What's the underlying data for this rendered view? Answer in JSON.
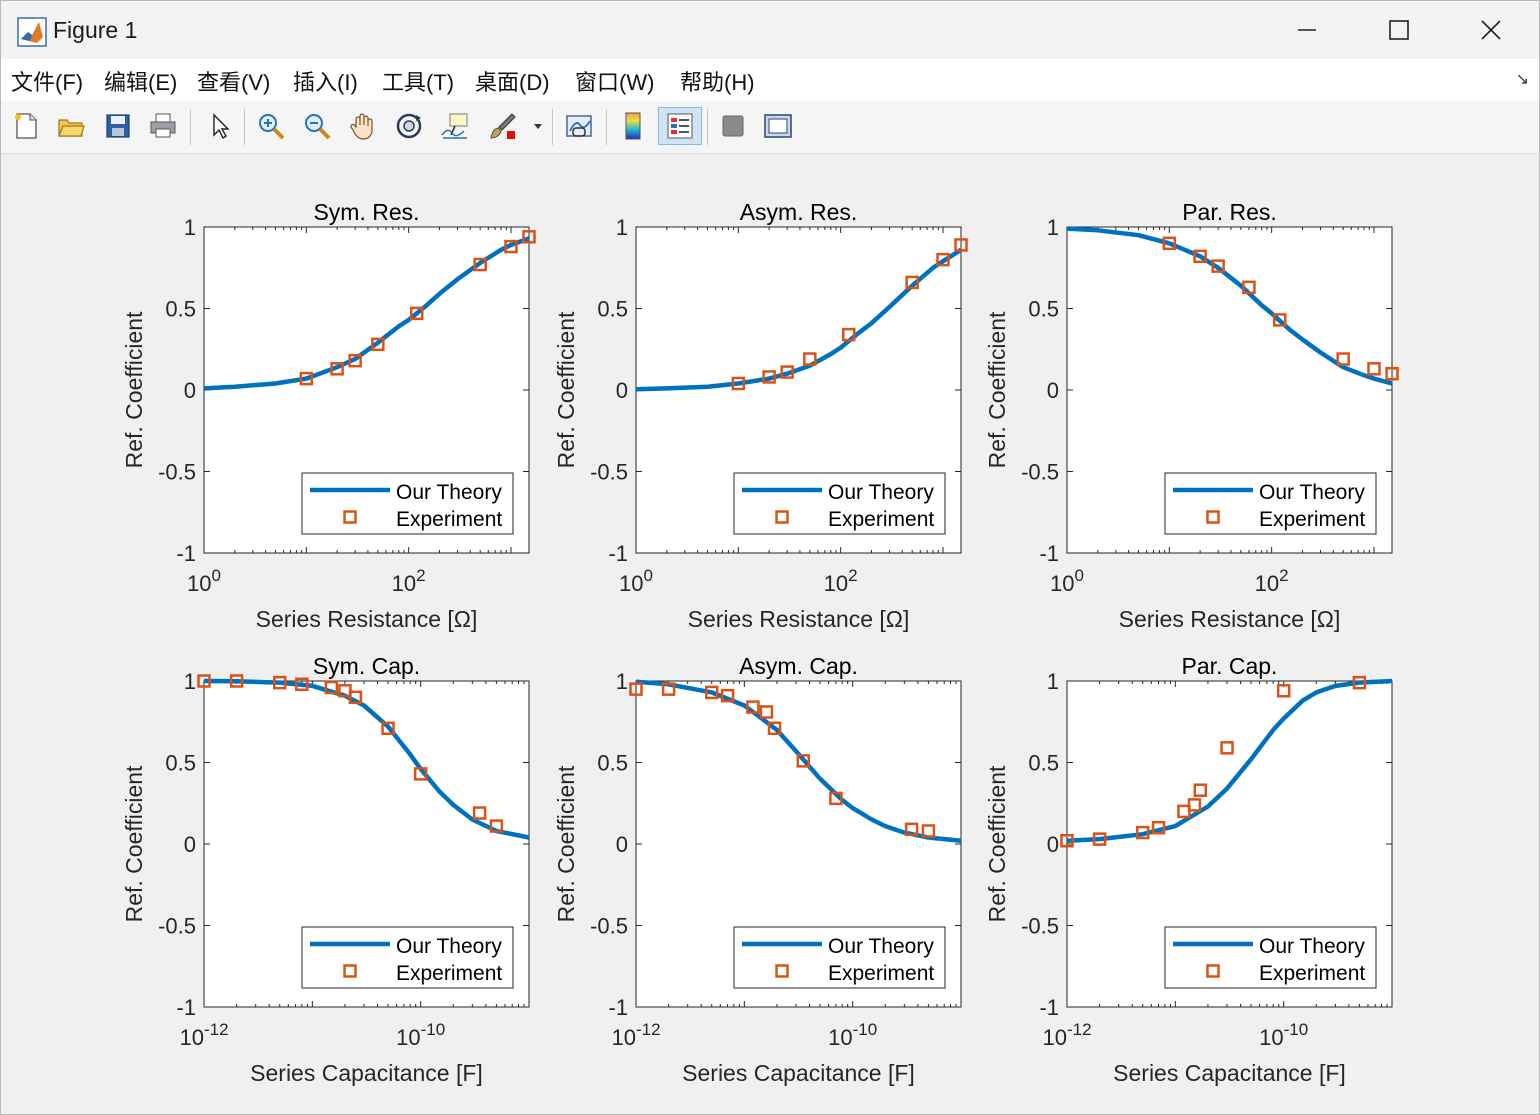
{
  "window": {
    "title": "Figure 1",
    "menu": [
      "文件(F)",
      "编辑(E)",
      "查看(V)",
      "插入(I)",
      "工具(T)",
      "桌面(D)",
      "窗口(W)",
      "帮助(H)"
    ],
    "menu_more": "↘"
  },
  "colors": {
    "theory": "#0072bd",
    "experiment": "#d95319"
  },
  "toolbar_icons": [
    "new-file-icon",
    "open-folder-icon",
    "save-icon",
    "print-icon",
    "select-arrow-icon",
    "zoom-in-icon",
    "zoom-out-icon",
    "pan-hand-icon",
    "rotate-3d-icon",
    "data-cursor-icon",
    "brush-icon",
    "link-plot-icon",
    "insert-colorbar-icon",
    "insert-legend-icon",
    "hide-plot-tools-icon",
    "show-plot-tools-icon"
  ],
  "chart_data": [
    {
      "type": "line",
      "title": "Sym. Res.",
      "xlabel": "Series Resistance [Ω]",
      "ylabel": "Ref. Coefficient",
      "xscale": "log",
      "xlim": [
        1,
        1500
      ],
      "ylim": [
        -1,
        1
      ],
      "xticks": [
        {
          "value": 1,
          "base": "10",
          "exp": "0"
        },
        {
          "value": 100,
          "base": "10",
          "exp": "2"
        }
      ],
      "yticks": [
        "-1",
        "-0.5",
        "0",
        "0.5",
        "1"
      ],
      "legend": {
        "position": "bottom-right",
        "entries": [
          "Our Theory",
          "Experiment"
        ]
      },
      "series": [
        {
          "name": "Our Theory",
          "style": "line",
          "x": [
            1,
            2,
            5,
            10,
            20,
            30,
            50,
            80,
            100,
            150,
            200,
            300,
            500,
            800,
            1000,
            1500
          ],
          "y": [
            0.01,
            0.02,
            0.04,
            0.07,
            0.14,
            0.19,
            0.29,
            0.39,
            0.43,
            0.52,
            0.59,
            0.68,
            0.78,
            0.86,
            0.89,
            0.93
          ]
        },
        {
          "name": "Experiment",
          "style": "marker",
          "x": [
            10,
            20,
            30,
            50,
            120,
            500,
            1000,
            2000
          ],
          "y": [
            0.07,
            0.13,
            0.18,
            0.28,
            0.47,
            0.77,
            0.88,
            0.94
          ]
        }
      ]
    },
    {
      "type": "line",
      "title": "Asym. Res.",
      "xlabel": "Series Resistance [Ω]",
      "ylabel": "Ref. Coefficient",
      "xscale": "log",
      "xlim": [
        1,
        1500
      ],
      "ylim": [
        -1,
        1
      ],
      "xticks": [
        {
          "value": 1,
          "base": "10",
          "exp": "0"
        },
        {
          "value": 100,
          "base": "10",
          "exp": "2"
        }
      ],
      "yticks": [
        "-1",
        "-0.5",
        "0",
        "0.5",
        "1"
      ],
      "legend": {
        "position": "bottom-right",
        "entries": [
          "Our Theory",
          "Experiment"
        ]
      },
      "series": [
        {
          "name": "Our Theory",
          "style": "line",
          "x": [
            1,
            2,
            5,
            10,
            20,
            30,
            50,
            80,
            100,
            150,
            200,
            300,
            500,
            800,
            1000,
            1500
          ],
          "y": [
            0.005,
            0.01,
            0.02,
            0.04,
            0.07,
            0.1,
            0.15,
            0.22,
            0.26,
            0.35,
            0.41,
            0.51,
            0.64,
            0.75,
            0.79,
            0.86
          ]
        },
        {
          "name": "Experiment",
          "style": "marker",
          "x": [
            10,
            20,
            30,
            50,
            120,
            500,
            1000,
            2000
          ],
          "y": [
            0.04,
            0.08,
            0.11,
            0.19,
            0.34,
            0.66,
            0.8,
            0.89
          ]
        }
      ]
    },
    {
      "type": "line",
      "title": "Par. Res.",
      "xlabel": "Series Resistance [Ω]",
      "ylabel": "Ref. Coefficient",
      "xscale": "log",
      "xlim": [
        1,
        1500
      ],
      "ylim": [
        -1,
        1
      ],
      "xticks": [
        {
          "value": 1,
          "base": "10",
          "exp": "0"
        },
        {
          "value": 100,
          "base": "10",
          "exp": "2"
        }
      ],
      "yticks": [
        "-1",
        "-0.5",
        "0",
        "0.5",
        "1"
      ],
      "legend": {
        "position": "bottom-right",
        "entries": [
          "Our Theory",
          "Experiment"
        ]
      },
      "series": [
        {
          "name": "Our Theory",
          "style": "line",
          "x": [
            1,
            2,
            5,
            10,
            20,
            30,
            50,
            80,
            100,
            150,
            200,
            300,
            500,
            800,
            1000,
            1500
          ],
          "y": [
            0.99,
            0.98,
            0.95,
            0.9,
            0.82,
            0.75,
            0.64,
            0.52,
            0.47,
            0.37,
            0.31,
            0.23,
            0.14,
            0.09,
            0.07,
            0.04
          ]
        },
        {
          "name": "Experiment",
          "style": "marker",
          "x": [
            10,
            20,
            30,
            60,
            120,
            500,
            1000,
            2000
          ],
          "y": [
            0.9,
            0.82,
            0.76,
            0.63,
            0.43,
            0.19,
            0.13,
            0.1
          ]
        }
      ]
    },
    {
      "type": "line",
      "title": "Sym. Cap.",
      "xlabel": "Series Capacitance [F]",
      "ylabel": "Ref. Coefficient",
      "xscale": "log",
      "xlim": [
        1e-12,
        1e-09
      ],
      "ylim": [
        -1,
        1
      ],
      "xticks": [
        {
          "value": 1e-12,
          "base": "10",
          "exp": "-12"
        },
        {
          "value": 1e-10,
          "base": "10",
          "exp": "-10"
        }
      ],
      "yticks": [
        "-1",
        "-0.5",
        "0",
        "0.5",
        "1"
      ],
      "legend": {
        "position": "bottom-right",
        "entries": [
          "Our Theory",
          "Experiment"
        ]
      },
      "series": [
        {
          "name": "Our Theory",
          "style": "line",
          "x": [
            1e-12,
            2e-12,
            5e-12,
            1e-11,
            2e-11,
            3e-11,
            5e-11,
            8e-11,
            1e-10,
            1.5e-10,
            2e-10,
            3e-10,
            5e-10,
            1e-09
          ],
          "y": [
            1.0,
            0.998,
            0.99,
            0.97,
            0.91,
            0.85,
            0.72,
            0.55,
            0.46,
            0.32,
            0.24,
            0.15,
            0.08,
            0.04
          ]
        },
        {
          "name": "Experiment",
          "style": "marker",
          "x": [
            1e-12,
            2e-12,
            5e-12,
            8e-12,
            1.5e-11,
            2e-11,
            2.5e-11,
            5e-11,
            1e-10,
            3.5e-10,
            5e-10
          ],
          "y": [
            1.0,
            1.0,
            0.99,
            0.98,
            0.96,
            0.94,
            0.9,
            0.71,
            0.43,
            0.19,
            0.11
          ]
        }
      ]
    },
    {
      "type": "line",
      "title": "Asym. Cap.",
      "xlabel": "Series Capacitance [F]",
      "ylabel": "Ref. Coefficient",
      "xscale": "log",
      "xlim": [
        1e-12,
        1e-09
      ],
      "ylim": [
        -1,
        1
      ],
      "xticks": [
        {
          "value": 1e-12,
          "base": "10",
          "exp": "-12"
        },
        {
          "value": 1e-10,
          "base": "10",
          "exp": "-10"
        }
      ],
      "yticks": [
        "-1",
        "-0.5",
        "0",
        "0.5",
        "1"
      ],
      "legend": {
        "position": "bottom-right",
        "entries": [
          "Our Theory",
          "Experiment"
        ]
      },
      "series": [
        {
          "name": "Our Theory",
          "style": "line",
          "x": [
            1e-12,
            2e-12,
            5e-12,
            1e-11,
            2e-11,
            3e-11,
            5e-11,
            8e-11,
            1e-10,
            1.5e-10,
            2e-10,
            3e-10,
            5e-10,
            1e-09
          ],
          "y": [
            0.995,
            0.98,
            0.93,
            0.85,
            0.7,
            0.57,
            0.4,
            0.27,
            0.22,
            0.15,
            0.11,
            0.07,
            0.04,
            0.02
          ]
        },
        {
          "name": "Experiment",
          "style": "marker",
          "x": [
            1e-12,
            2e-12,
            5e-12,
            7e-12,
            1.2e-11,
            1.6e-11,
            1.9e-11,
            3.5e-11,
            7e-11,
            3.5e-10,
            5e-10
          ],
          "y": [
            0.95,
            0.95,
            0.93,
            0.91,
            0.84,
            0.81,
            0.71,
            0.51,
            0.28,
            0.09,
            0.08
          ]
        }
      ]
    },
    {
      "type": "line",
      "title": "Par. Cap.",
      "xlabel": "Series Capacitance [F]",
      "ylabel": "Ref. Coefficient",
      "xscale": "log",
      "xlim": [
        1e-12,
        1e-09
      ],
      "ylim": [
        -1,
        1
      ],
      "xticks": [
        {
          "value": 1e-12,
          "base": "10",
          "exp": "-12"
        },
        {
          "value": 1e-10,
          "base": "10",
          "exp": "-10"
        }
      ],
      "yticks": [
        "-1",
        "-0.5",
        "0",
        "0.5",
        "1"
      ],
      "legend": {
        "position": "bottom-right",
        "entries": [
          "Our Theory",
          "Experiment"
        ]
      },
      "series": [
        {
          "name": "Our Theory",
          "style": "line",
          "x": [
            1e-12,
            2e-12,
            5e-12,
            1e-11,
            2e-11,
            3e-11,
            5e-11,
            8e-11,
            1e-10,
            1.5e-10,
            2e-10,
            3e-10,
            5e-10,
            1e-09
          ],
          "y": [
            0.02,
            0.03,
            0.06,
            0.11,
            0.23,
            0.34,
            0.52,
            0.7,
            0.77,
            0.88,
            0.93,
            0.97,
            0.99,
            1.0
          ]
        },
        {
          "name": "Experiment",
          "style": "marker",
          "x": [
            1e-12,
            2e-12,
            5e-12,
            7e-12,
            1.2e-11,
            1.5e-11,
            1.7e-11,
            3e-11,
            1e-10,
            5e-10
          ],
          "y": [
            0.02,
            0.03,
            0.07,
            0.1,
            0.2,
            0.24,
            0.33,
            0.59,
            0.94,
            0.99
          ]
        }
      ]
    }
  ]
}
